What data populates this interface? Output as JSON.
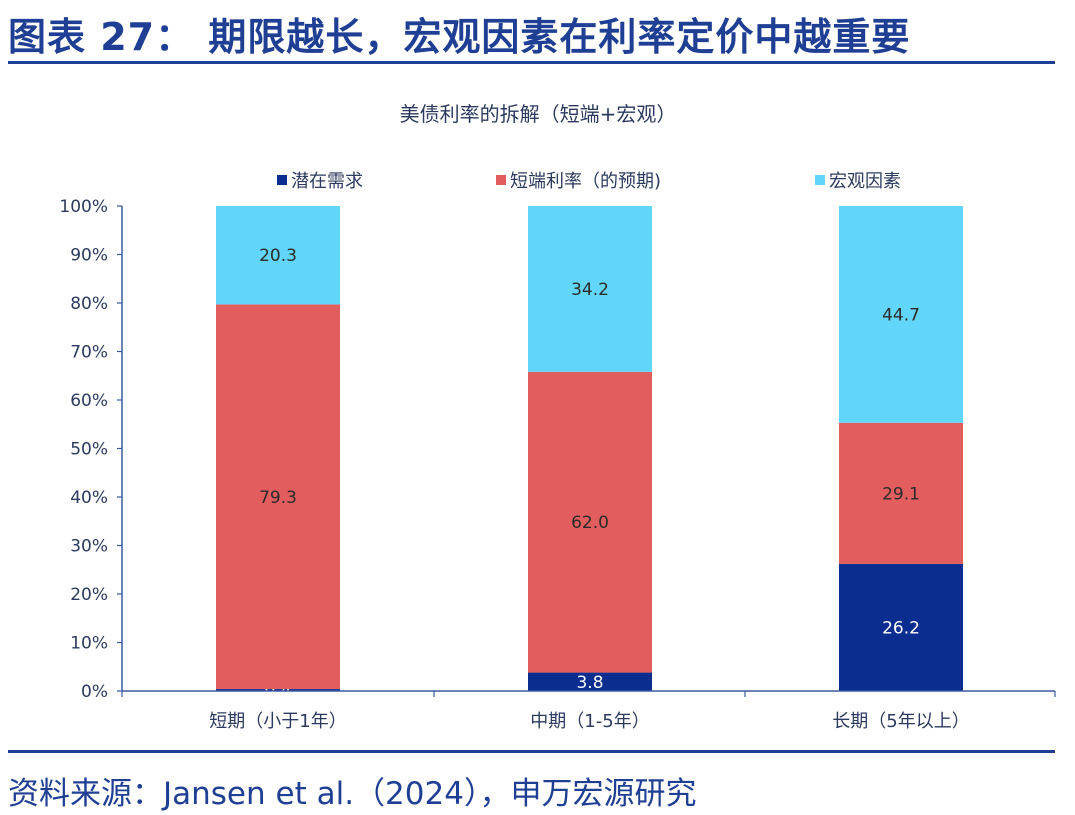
{
  "header": {
    "figure_title": "图表 27：  期限越长，宏观因素在利率定价中越重要"
  },
  "footer": {
    "source": "资料来源：Jansen et al.（2024），申万宏源研究"
  },
  "colors": {
    "brand": "#1f3f94",
    "series": [
      "#0a2d8f",
      "#e25e5e",
      "#62d6fa"
    ],
    "axis": "#3a5aa0",
    "text": "#2b3a5e"
  },
  "chart_data": {
    "type": "bar",
    "stacked": true,
    "title": "美债利率的拆解（短端+宏观）",
    "categories": [
      "短期（小于1年）",
      "中期（1-5年）",
      "长期（5年以上）"
    ],
    "series": [
      {
        "name": "潜在需求",
        "values": [
          0.4,
          3.8,
          26.2
        ]
      },
      {
        "name": "短端利率（的预期)",
        "values": [
          79.3,
          62.0,
          29.1
        ]
      },
      {
        "name": "宏观因素",
        "values": [
          20.3,
          34.2,
          44.7
        ]
      }
    ],
    "ylim": [
      0,
      100
    ],
    "yticks": [
      "0%",
      "10%",
      "20%",
      "30%",
      "40%",
      "50%",
      "60%",
      "70%",
      "80%",
      "90%",
      "100%"
    ],
    "legend_position": "top",
    "grid": false
  }
}
